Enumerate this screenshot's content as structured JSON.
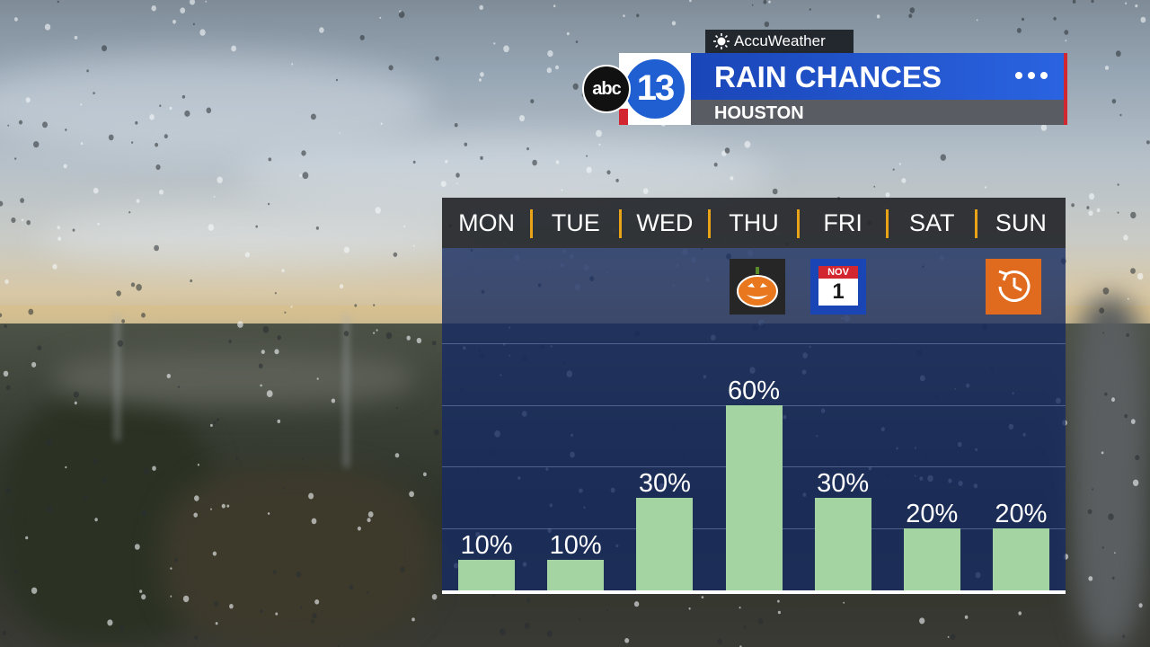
{
  "header": {
    "provider": "AccuWeather",
    "network_logo": "abc",
    "channel_number": "13",
    "title": "RAIN CHANCES",
    "subtitle": "HOUSTON"
  },
  "icons": {
    "provider": "sun-icon",
    "menu": "more-dots-icon",
    "thu_event": "jack-o-lantern-icon",
    "fri_event": "calendar-icon",
    "sun_event": "clock-rewind-icon"
  },
  "events": {
    "fri_calendar_month": "NOV",
    "fri_calendar_day": "1"
  },
  "colors": {
    "bar": "#a3d4a2",
    "title_bar": "#1f5fd1",
    "accent_red": "#d22630",
    "separator": "#e8a317",
    "panel": "#162c62"
  },
  "chart_data": {
    "type": "bar",
    "categories": [
      "MON",
      "TUE",
      "WED",
      "THU",
      "FRI",
      "SAT",
      "SUN"
    ],
    "values": [
      10,
      10,
      30,
      60,
      30,
      20,
      20
    ],
    "labels": [
      "10%",
      "10%",
      "30%",
      "60%",
      "30%",
      "20%",
      "20%"
    ],
    "unit": "%",
    "ylim": [
      0,
      100
    ],
    "grid": true,
    "title": "RAIN CHANCES"
  }
}
